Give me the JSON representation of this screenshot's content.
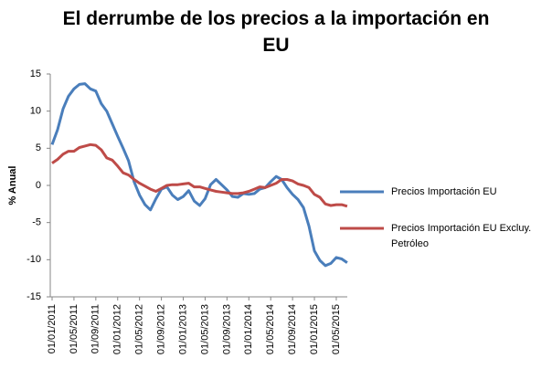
{
  "chart_data": {
    "type": "line",
    "title": "El derrumbe de los precios a la importación en EU",
    "y_label": "% Anual",
    "categories": [
      "01/01/2011",
      null,
      null,
      null,
      "01/05/2011",
      null,
      null,
      null,
      "01/09/2011",
      null,
      null,
      null,
      "01/01/2012",
      null,
      null,
      null,
      "01/05/2012",
      null,
      null,
      null,
      "01/09/2012",
      null,
      null,
      null,
      "01/01/2013",
      null,
      null,
      null,
      "01/05/2013",
      null,
      null,
      null,
      "01/09/2013",
      null,
      null,
      null,
      "01/01/2014",
      null,
      null,
      null,
      "01/05/2014",
      null,
      null,
      null,
      "01/09/2014",
      null,
      null,
      null,
      "01/01/2015",
      null,
      null,
      null,
      "01/05/2015",
      null,
      null
    ],
    "series": [
      {
        "name": "Precios Importación EU",
        "color": "#4a7ebb",
        "values": [
          5.5,
          7.5,
          10.3,
          12,
          13,
          13.6,
          13.7,
          13,
          12.7,
          11,
          10,
          8.3,
          6.6,
          5,
          3.3,
          0.5,
          -1.3,
          -2.6,
          -3.3,
          -1.8,
          -0.5,
          -0.2,
          -1.3,
          -1.9,
          -1.5,
          -0.7,
          -2.1,
          -2.7,
          -1.8,
          0.1,
          0.8,
          0.1,
          -0.6,
          -1.5,
          -1.6,
          -1.1,
          -1.2,
          -1.1,
          -0.5,
          -0.3,
          0.5,
          1.2,
          0.8,
          -0.3,
          -1.2,
          -1.9,
          -3,
          -5.5,
          -8.8,
          -10.1,
          -10.8,
          -10.5,
          -9.7,
          -9.9,
          -10.4
        ]
      },
      {
        "name": "Precios Importación EU Excluy. Petróleo",
        "color": "#be4b48",
        "values": [
          3,
          3.5,
          4.2,
          4.6,
          4.6,
          5.1,
          5.3,
          5.5,
          5.4,
          4.8,
          3.7,
          3.4,
          2.6,
          1.7,
          1.4,
          0.8,
          0.3,
          -0.1,
          -0.5,
          -0.8,
          -0.4,
          0,
          0.1,
          0.1,
          0.2,
          0.3,
          -0.2,
          -0.2,
          -0.4,
          -0.6,
          -0.8,
          -0.9,
          -1.0,
          -1.1,
          -1.1,
          -1.0,
          -0.8,
          -0.5,
          -0.2,
          -0.3,
          0.0,
          0.3,
          0.8,
          0.8,
          0.6,
          0.2,
          0.0,
          -0.3,
          -1.2,
          -1.6,
          -2.5,
          -2.7,
          -2.6,
          -2.6,
          -2.8
        ]
      }
    ],
    "ylim": [
      -15,
      15
    ],
    "yticks": [
      -15,
      -10,
      -5,
      0,
      5,
      10,
      15
    ],
    "grid": false,
    "legend": "right"
  }
}
